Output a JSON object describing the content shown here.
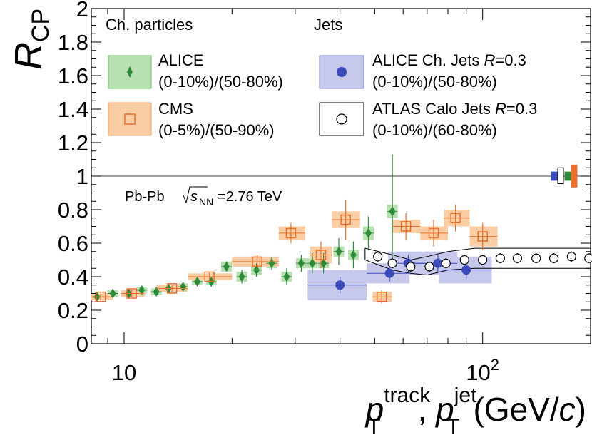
{
  "chart_data": {
    "type": "scatter",
    "title": "",
    "xlabel": "p_T^track, p_T^jet (GeV/c)",
    "xlabel_parts": {
      "p1": "p",
      "sup1": "track",
      "sub1": "T",
      "comma": ", ",
      "p2": "p",
      "sup2": "jet",
      "sub2": "T",
      "unit_open": " (GeV/",
      "unit_c": "c",
      "unit_close": ")"
    },
    "ylabel": "R_CP",
    "ylabel_parts": {
      "main": "R",
      "sub": "CP"
    },
    "x_scale": "log",
    "xlim": [
      8.1,
      200
    ],
    "ylim": [
      0,
      2
    ],
    "y_ticks": [
      0,
      0.2,
      0.4,
      0.6,
      0.8,
      1,
      1.2,
      1.4,
      1.6,
      1.8,
      2
    ],
    "y_tick_labels": [
      "0",
      "0.2",
      "0.4",
      "0.6",
      "0.8",
      "1",
      "1.2",
      "1.4",
      "1.6",
      "1.8",
      "2"
    ],
    "x_major_ticks": [
      10,
      100
    ],
    "x_tick_labels": [
      "10",
      "10^2"
    ],
    "x_tick_label_parts": [
      {
        "base": "10",
        "exp": ""
      },
      {
        "base": "10",
        "exp": "2"
      }
    ],
    "reference_line": 1,
    "grid": false,
    "legend_position": "top",
    "legend_headers": {
      "left": "Ch. particles",
      "right": "Jets"
    },
    "annotation": {
      "system": "Pb-Pb",
      "sqrt": "s",
      "sub": "NN",
      "energy": "=2.76 TeV"
    },
    "series": [
      {
        "name": "ALICE",
        "legend_line2": "(0-10%)/(50-80%)",
        "marker": "diamond",
        "color": "#2e8b3a",
        "box_fill": "#b9e0b2",
        "box_edge": "#6bbf6a",
        "points": [
          {
            "x": 8.4,
            "y": 0.28,
            "err": 0.02,
            "sys": 0.02
          },
          {
            "x": 9.3,
            "y": 0.3,
            "err": 0.02,
            "sys": 0.02
          },
          {
            "x": 10.3,
            "y": 0.3,
            "err": 0.02,
            "sys": 0.02
          },
          {
            "x": 11.2,
            "y": 0.32,
            "err": 0.02,
            "sys": 0.02
          },
          {
            "x": 12.3,
            "y": 0.31,
            "err": 0.02,
            "sys": 0.02
          },
          {
            "x": 13.3,
            "y": 0.33,
            "err": 0.02,
            "sys": 0.02
          },
          {
            "x": 14.6,
            "y": 0.34,
            "err": 0.02,
            "sys": 0.02
          },
          {
            "x": 16.0,
            "y": 0.37,
            "err": 0.02,
            "sys": 0.02
          },
          {
            "x": 17.5,
            "y": 0.37,
            "err": 0.03,
            "sys": 0.02
          },
          {
            "x": 19.3,
            "y": 0.46,
            "err": 0.03,
            "sys": 0.03
          },
          {
            "x": 21.3,
            "y": 0.4,
            "err": 0.04,
            "sys": 0.03
          },
          {
            "x": 23.4,
            "y": 0.44,
            "err": 0.04,
            "sys": 0.03
          },
          {
            "x": 25.8,
            "y": 0.48,
            "err": 0.04,
            "sys": 0.03
          },
          {
            "x": 28.4,
            "y": 0.4,
            "err": 0.05,
            "sys": 0.03
          },
          {
            "x": 31.2,
            "y": 0.48,
            "err": 0.05,
            "sys": 0.03
          },
          {
            "x": 33.5,
            "y": 0.48,
            "err": 0.06,
            "sys": 0.03
          },
          {
            "x": 36.0,
            "y": 0.48,
            "err": 0.06,
            "sys": 0.03
          },
          {
            "x": 39.7,
            "y": 0.55,
            "err": 0.08,
            "sys": 0.03
          },
          {
            "x": 43.6,
            "y": 0.53,
            "err": 0.08,
            "sys": 0.03
          },
          {
            "x": 48.0,
            "y": 0.66,
            "err": 0.1,
            "sys": 0.04
          },
          {
            "x": 56.0,
            "y": 0.79,
            "err": 0.34,
            "sys": 0.04
          }
        ]
      },
      {
        "name": "CMS",
        "legend_line2": "(0-5%)/(50-90%)",
        "marker": "open-square",
        "color": "#e8702a",
        "box_fill": "#fbcda4",
        "box_edge": "#f0a068",
        "points": [
          {
            "x": 8.6,
            "y": 0.28,
            "err": 0.02,
            "sys": 0.02,
            "wl": 0.5,
            "wr": 0.7
          },
          {
            "x": 10.5,
            "y": 0.3,
            "err": 0.02,
            "sys": 0.02,
            "wl": 0.7,
            "wr": 0.9
          },
          {
            "x": 13.6,
            "y": 0.33,
            "err": 0.02,
            "sys": 0.02,
            "wl": 1.3,
            "wr": 1.4
          },
          {
            "x": 17.3,
            "y": 0.4,
            "err": 0.03,
            "sys": 0.02,
            "wl": 2.2,
            "wr": 2.7
          },
          {
            "x": 23.5,
            "y": 0.49,
            "err": 0.04,
            "sys": 0.03,
            "wl": 3.5,
            "wr": 3.5
          },
          {
            "x": 29.2,
            "y": 0.66,
            "err": 0.06,
            "sys": 0.04,
            "wl": 2.2,
            "wr": 2.8
          },
          {
            "x": 35.4,
            "y": 0.53,
            "err": 0.08,
            "sys": 0.05,
            "wl": 2.4,
            "wr": 2.6
          },
          {
            "x": 41.5,
            "y": 0.74,
            "err": 0.12,
            "sys": 0.05,
            "wl": 3.5,
            "wr": 4.0
          },
          {
            "x": 52.3,
            "y": 0.28,
            "err": 0.04,
            "sys": 0.03,
            "wl": 3.0,
            "wr": 3.5
          },
          {
            "x": 61.1,
            "y": 0.7,
            "err": 0.08,
            "sys": 0.04,
            "wl": 5.1,
            "wr": 5.9
          },
          {
            "x": 73.0,
            "y": 0.66,
            "err": 0.08,
            "sys": 0.04,
            "wl": 6.0,
            "wr": 7.0
          },
          {
            "x": 84.0,
            "y": 0.75,
            "err": 0.08,
            "sys": 0.05,
            "wl": 6.0,
            "wr": 8.0
          },
          {
            "x": 100.0,
            "y": 0.64,
            "err": 0.08,
            "sys": 0.06,
            "wl": 8.0,
            "wr": 10.0
          }
        ]
      },
      {
        "name": "ALICE Ch. Jets R=0.3",
        "legend_parts": {
          "pre": "ALICE Ch. Jets ",
          "r": "R",
          "post": "=0.3"
        },
        "legend_line2": "(0-10%)/(50-80%)",
        "marker": "filled-circle",
        "color": "#3a4ab8",
        "box_fill": "#c7c9ec",
        "box_edge": "#7a82cc",
        "points": [
          {
            "x": 40.0,
            "y": 0.35,
            "err": 0.05,
            "sys": 0.09,
            "xlo": 32.5,
            "xhi": 47.5
          },
          {
            "x": 55.0,
            "y": 0.42,
            "err": 0.05,
            "sys": 0.06,
            "xlo": 47.5,
            "xhi": 62.5
          },
          {
            "x": 62.0,
            "y": 0.48,
            "err": 0.05,
            "sys": 0.07,
            "xlo": 54.5,
            "xhi": 71.0
          },
          {
            "x": 75.0,
            "y": 0.48,
            "err": 0.05,
            "sys": 0.07,
            "xlo": 64.5,
            "xhi": 85.0
          },
          {
            "x": 90.0,
            "y": 0.44,
            "err": 0.05,
            "sys": 0.08,
            "xlo": 75.5,
            "xhi": 106.0
          }
        ]
      },
      {
        "name": "ATLAS Calo Jets R=0.3",
        "legend_parts": {
          "pre": "ATLAS Calo Jets ",
          "r": "R",
          "post": "=0.3"
        },
        "legend_line2": "(0-10%)/(60-80%)",
        "marker": "open-circle",
        "color": "#000000",
        "box_fill": "#ffffff",
        "box_edge": "#000000",
        "points": [
          {
            "x": 51.0,
            "y": 0.52,
            "err": 0.03
          },
          {
            "x": 56.0,
            "y": 0.48,
            "err": 0.03
          },
          {
            "x": 63.0,
            "y": 0.46,
            "err": 0.03
          },
          {
            "x": 71.0,
            "y": 0.46,
            "err": 0.03
          },
          {
            "x": 79.0,
            "y": 0.48,
            "err": 0.03
          },
          {
            "x": 89.0,
            "y": 0.5,
            "err": 0.03
          },
          {
            "x": 100.0,
            "y": 0.5,
            "err": 0.03
          },
          {
            "x": 112.0,
            "y": 0.51,
            "err": 0.03
          },
          {
            "x": 125.0,
            "y": 0.51,
            "err": 0.03
          },
          {
            "x": 141.0,
            "y": 0.51,
            "err": 0.03
          },
          {
            "x": 158.0,
            "y": 0.51,
            "err": 0.03
          },
          {
            "x": 177.0,
            "y": 0.52,
            "err": 0.03
          },
          {
            "x": 198.0,
            "y": 0.51,
            "err": 0.03
          }
        ],
        "band_upper": [
          [
            47,
            0.57
          ],
          [
            56,
            0.53
          ],
          [
            63,
            0.5
          ],
          [
            70,
            0.52
          ],
          [
            80,
            0.55
          ],
          [
            95,
            0.57
          ],
          [
            200,
            0.57
          ]
        ],
        "band_lower": [
          [
            47,
            0.5
          ],
          [
            56,
            0.44
          ],
          [
            63,
            0.42
          ],
          [
            70,
            0.41
          ],
          [
            80,
            0.44
          ],
          [
            95,
            0.45
          ],
          [
            200,
            0.45
          ]
        ]
      }
    ],
    "norm_uncertainties": [
      {
        "series": "ALICE Ch. Jets R=0.3",
        "color": "#3a4ab8",
        "fill": "#3a4ab8",
        "lo": 0.975,
        "hi": 1.025
      },
      {
        "series": "ATLAS Calo Jets R=0.3",
        "color": "#000000",
        "fill": "#ffffff",
        "lo": 0.955,
        "hi": 1.05
      },
      {
        "series": "ALICE",
        "color": "#2e8b3a",
        "fill": "#2e8b3a",
        "lo": 0.975,
        "hi": 1.025
      },
      {
        "series": "CMS",
        "color": "#e8702a",
        "fill": "#e8702a",
        "lo": 0.935,
        "hi": 1.065
      }
    ]
  }
}
